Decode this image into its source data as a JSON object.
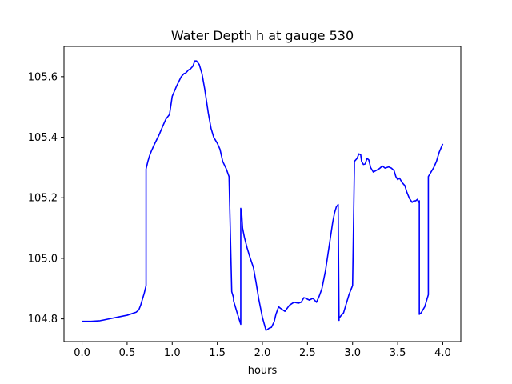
{
  "chart_data": {
    "type": "line",
    "title": "Water Depth h at gauge 530",
    "xlabel": "hours",
    "ylabel": "",
    "xlim": [
      -0.2,
      4.2
    ],
    "ylim": [
      104.725,
      105.7
    ],
    "xticks": [
      0.0,
      0.5,
      1.0,
      1.5,
      2.0,
      2.5,
      3.0,
      3.5,
      4.0
    ],
    "xtick_labels": [
      "0.0",
      "0.5",
      "1.0",
      "1.5",
      "2.0",
      "2.5",
      "3.0",
      "3.5",
      "4.0"
    ],
    "yticks": [
      104.8,
      105.0,
      105.2,
      105.4,
      105.6
    ],
    "ytick_labels": [
      "104.8",
      "105.0",
      "105.2",
      "105.4",
      "105.6"
    ],
    "grid": false,
    "series": [
      {
        "color": "#0000ff",
        "x": [
          0.0,
          0.1,
          0.2,
          0.3,
          0.4,
          0.5,
          0.55,
          0.6,
          0.63,
          0.65,
          0.67,
          0.69,
          0.71,
          0.71,
          0.73,
          0.75,
          0.77,
          0.8,
          0.85,
          0.9,
          0.93,
          0.97,
          1.0,
          1.05,
          1.1,
          1.13,
          1.15,
          1.18,
          1.2,
          1.23,
          1.25,
          1.27,
          1.3,
          1.33,
          1.36,
          1.38,
          1.4,
          1.43,
          1.46,
          1.48,
          1.5,
          1.53,
          1.56,
          1.6,
          1.63,
          1.66,
          1.68,
          1.68,
          1.72,
          1.76,
          1.76,
          1.77,
          1.78,
          1.8,
          1.83,
          1.86,
          1.9,
          1.93,
          1.96,
          2.0,
          2.04,
          2.08,
          2.1,
          2.13,
          2.15,
          2.18,
          2.2,
          2.25,
          2.3,
          2.35,
          2.4,
          2.43,
          2.46,
          2.48,
          2.52,
          2.56,
          2.6,
          2.63,
          2.66,
          2.7,
          2.74,
          2.78,
          2.8,
          2.82,
          2.84,
          2.85,
          2.85,
          2.87,
          2.9,
          2.93,
          2.96,
          3.0,
          3.02,
          3.02,
          3.05,
          3.07,
          3.09,
          3.1,
          3.12,
          3.14,
          3.16,
          3.18,
          3.2,
          3.23,
          3.26,
          3.3,
          3.33,
          3.36,
          3.4,
          3.43,
          3.46,
          3.48,
          3.5,
          3.52,
          3.55,
          3.58,
          3.6,
          3.63,
          3.66,
          3.68,
          3.7,
          3.72,
          3.73,
          3.74,
          3.74,
          3.76,
          3.8,
          3.84,
          3.84,
          3.86,
          3.9,
          3.93,
          3.96,
          4.0
        ],
        "y": [
          104.792,
          104.792,
          104.794,
          104.8,
          104.806,
          104.812,
          104.817,
          104.822,
          104.83,
          104.845,
          104.865,
          104.885,
          104.91,
          105.295,
          105.32,
          105.34,
          105.355,
          105.375,
          105.405,
          105.44,
          105.46,
          105.475,
          105.535,
          105.57,
          105.6,
          105.61,
          105.612,
          105.622,
          105.625,
          105.635,
          105.652,
          105.652,
          105.64,
          105.61,
          105.56,
          105.52,
          105.48,
          105.43,
          105.4,
          105.39,
          105.38,
          105.36,
          105.32,
          105.295,
          105.27,
          104.89,
          104.87,
          104.86,
          104.82,
          104.782,
          105.165,
          105.15,
          105.1,
          105.07,
          105.035,
          105.005,
          104.97,
          104.92,
          104.865,
          104.805,
          104.762,
          104.77,
          104.772,
          104.79,
          104.815,
          104.84,
          104.835,
          104.825,
          104.845,
          104.855,
          104.852,
          104.855,
          104.87,
          104.868,
          104.862,
          104.868,
          104.855,
          104.875,
          104.9,
          104.96,
          105.04,
          105.12,
          105.15,
          105.17,
          105.178,
          104.795,
          104.802,
          104.81,
          104.82,
          104.85,
          104.88,
          104.91,
          105.3,
          105.32,
          105.33,
          105.345,
          105.342,
          105.32,
          105.31,
          105.312,
          105.33,
          105.325,
          105.3,
          105.285,
          105.29,
          105.297,
          105.305,
          105.298,
          105.302,
          105.298,
          105.29,
          105.27,
          105.26,
          105.265,
          105.25,
          105.24,
          105.22,
          105.198,
          105.185,
          105.19,
          105.19,
          105.195,
          105.185,
          105.19,
          104.815,
          104.82,
          104.84,
          104.88,
          105.27,
          105.28,
          105.3,
          105.32,
          105.35,
          105.378
        ]
      }
    ]
  }
}
